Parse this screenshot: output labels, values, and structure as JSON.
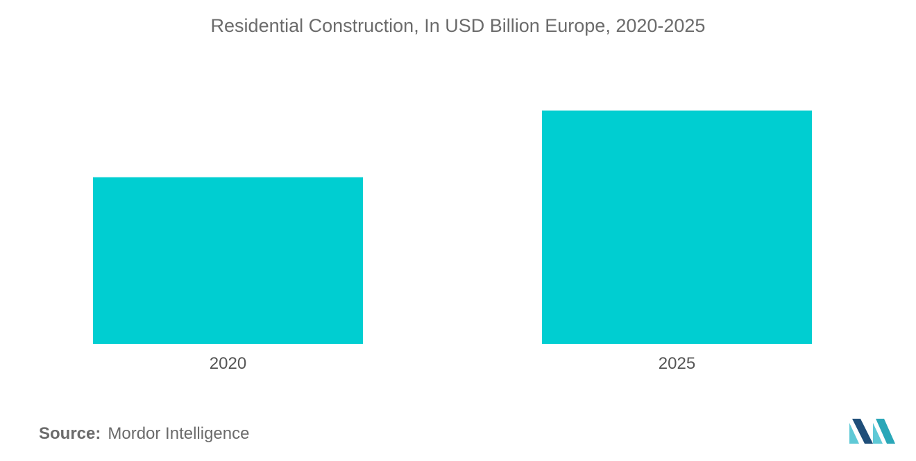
{
  "chart_data": {
    "type": "bar",
    "title": "Residential Construction, In USD Billion Europe, 2020-2025",
    "categories": [
      "2020",
      "2025"
    ],
    "values": [
      55,
      77
    ],
    "ylim": [
      0,
      100
    ],
    "xlabel": "",
    "ylabel": "",
    "grid": false,
    "legend": "none",
    "bar_color": "#00CED1"
  },
  "footer": {
    "source_label": "Source:",
    "source_value": "Mordor Intelligence"
  },
  "logo": {
    "icon": "mordor-intelligence-logo-icon",
    "colors": [
      "#1f4e79",
      "#2aa7b8",
      "#5fc9d6"
    ]
  }
}
